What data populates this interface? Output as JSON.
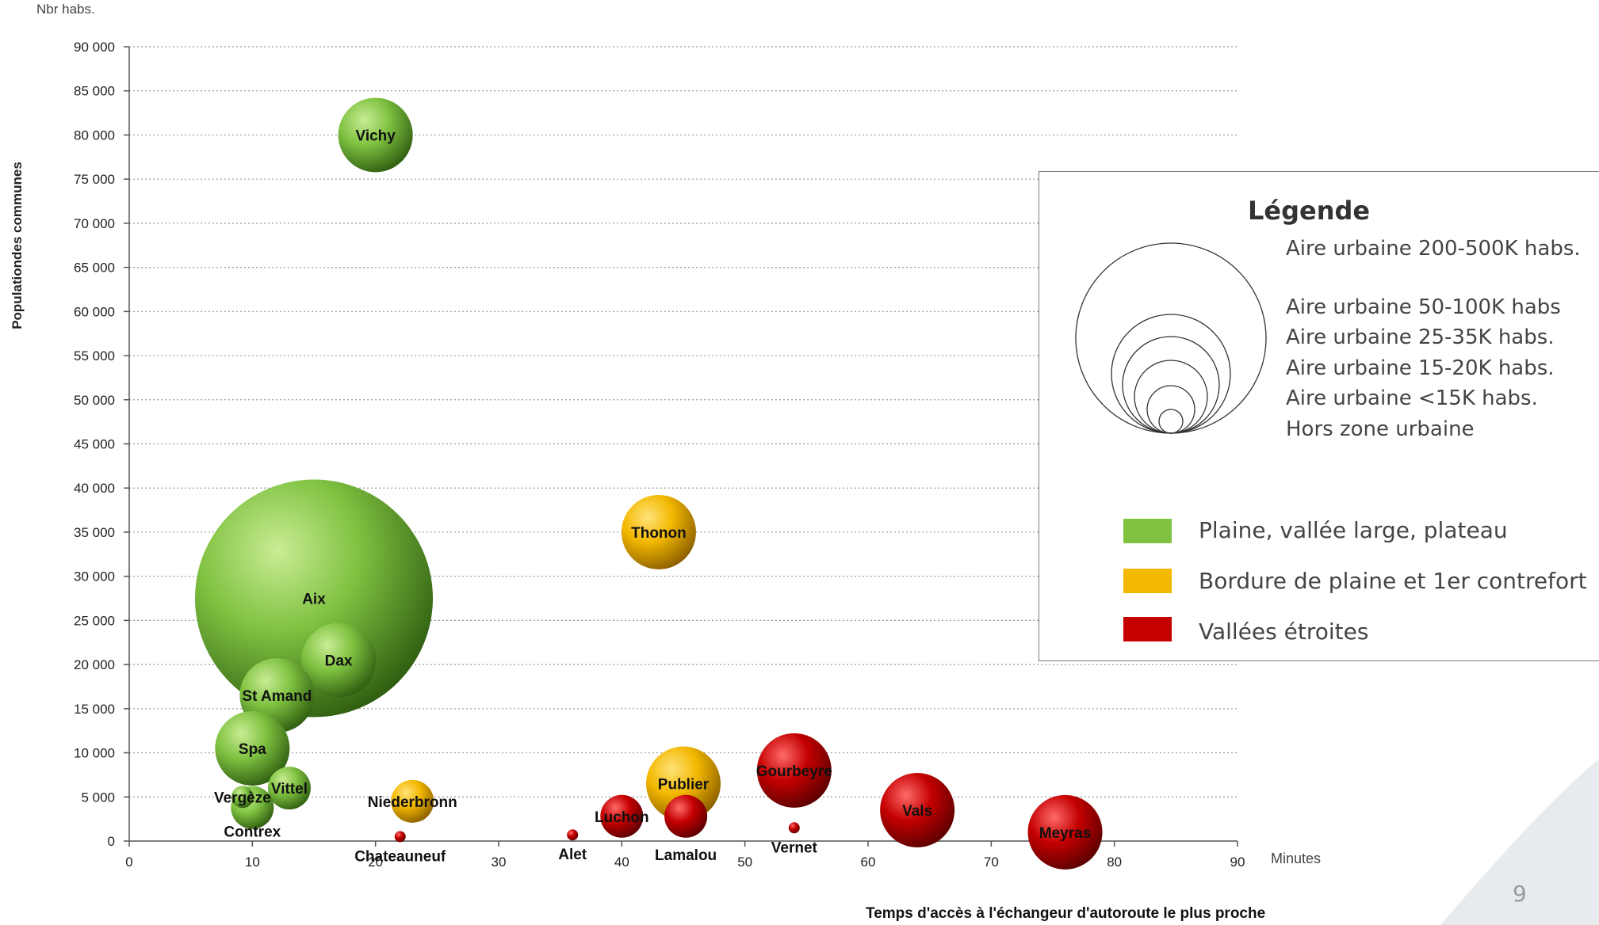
{
  "page_number": "9",
  "chart_data": {
    "type": "bubble",
    "xlabel": "Temps d'accès à l'échangeur d'autoroute le plus proche",
    "ylabel": "Populationdes communes",
    "x_unit": "Minutes",
    "y_unit": "Nbr habs.",
    "xlim": [
      0,
      90
    ],
    "ylim": [
      0,
      90000
    ],
    "x_ticks": [
      0,
      10,
      20,
      30,
      40,
      50,
      60,
      70,
      80,
      90
    ],
    "y_ticks": [
      0,
      5000,
      10000,
      15000,
      20000,
      25000,
      30000,
      35000,
      40000,
      45000,
      50000,
      55000,
      60000,
      65000,
      70000,
      75000,
      80000,
      85000,
      90000
    ],
    "y_tick_labels": [
      "0",
      "5 000",
      "10 000",
      "15 000",
      "20 000",
      "25 000",
      "30 000",
      "35 000",
      "40 000",
      "45 000",
      "50 000",
      "55 000",
      "60 000",
      "65 000",
      "70 000",
      "75 000",
      "80 000",
      "85 000",
      "90 000"
    ],
    "grid": "horizontal dotted",
    "colors": {
      "plaine": "#7fc241",
      "bordure": "#f3b800",
      "vallees": "#c40000"
    },
    "points": [
      {
        "label": "Vichy",
        "x": 20,
        "y": 80000,
        "size_class": "50-100K",
        "category": "plaine"
      },
      {
        "label": "Aix",
        "x": 15,
        "y": 27500,
        "size_class": "200-500K",
        "category": "plaine"
      },
      {
        "label": "Dax",
        "x": 17,
        "y": 20500,
        "size_class": "50-100K",
        "category": "plaine"
      },
      {
        "label": "St Amand",
        "x": 12,
        "y": 16500,
        "size_class": "50-100K",
        "category": "plaine"
      },
      {
        "label": "Spa",
        "x": 10,
        "y": 10500,
        "size_class": "50-100K",
        "category": "plaine"
      },
      {
        "label": "Vittel",
        "x": 13,
        "y": 6000,
        "size_class": "25-35K",
        "category": "plaine"
      },
      {
        "label": "Vergèze",
        "x": 9.2,
        "y": 5000,
        "size_class": "<15K",
        "category": "plaine"
      },
      {
        "label": "Contrex",
        "x": 10,
        "y": 3800,
        "size_class": "25-35K",
        "category": "plaine"
      },
      {
        "label": "Thonon",
        "x": 43,
        "y": 35000,
        "size_class": "50-100K",
        "category": "bordure"
      },
      {
        "label": "Publier",
        "x": 45,
        "y": 6500,
        "size_class": "50-100K",
        "category": "bordure"
      },
      {
        "label": "Niederbronn",
        "x": 23,
        "y": 4500,
        "size_class": "25-35K",
        "category": "bordure"
      },
      {
        "label": "Chateauneuf",
        "x": 22,
        "y": 500,
        "size_class": "hors zone",
        "category": "vallees"
      },
      {
        "label": "Alet",
        "x": 36,
        "y": 700,
        "size_class": "hors zone",
        "category": "vallees"
      },
      {
        "label": "Luchon",
        "x": 40,
        "y": 2800,
        "size_class": "25-35K",
        "category": "vallees"
      },
      {
        "label": "Lamalou",
        "x": 45.2,
        "y": 2800,
        "size_class": "25-35K",
        "category": "vallees"
      },
      {
        "label": "Gourbeyre",
        "x": 54,
        "y": 8000,
        "size_class": "50-100K",
        "category": "vallees"
      },
      {
        "label": "Vernet",
        "x": 54,
        "y": 1500,
        "size_class": "hors zone",
        "category": "vallees"
      },
      {
        "label": "Vals",
        "x": 64,
        "y": 3500,
        "size_class": "50-100K",
        "category": "vallees"
      },
      {
        "label": "Meyras",
        "x": 76,
        "y": 1000,
        "size_class": "50-100K",
        "category": "vallees"
      }
    ]
  },
  "legend": {
    "title": "Légende",
    "sizes": [
      "Aire urbaine 200-500K habs.",
      "Aire urbaine 50-100K habs",
      "Aire urbaine 25-35K habs.",
      "Aire urbaine 15-20K habs.",
      "Aire urbaine <15K habs.",
      "Hors zone urbaine"
    ],
    "categories": [
      {
        "label": "Plaine, vallée large, plateau",
        "color": "#7fc241"
      },
      {
        "label": "Bordure de plaine et 1er contrefort",
        "color": "#f3b800"
      },
      {
        "label": "Vallées étroites",
        "color": "#c40000"
      }
    ]
  }
}
